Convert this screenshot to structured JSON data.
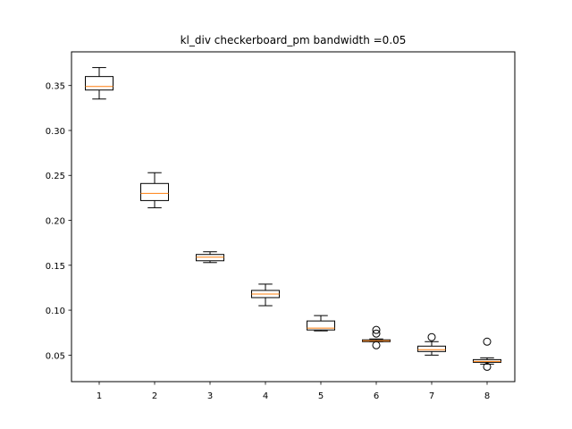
{
  "chart_data": {
    "type": "boxplot",
    "title": "kl_div checkerboard_pm bandwidth =0.05",
    "xlabel": "",
    "ylabel": "",
    "categories": [
      "1",
      "2",
      "3",
      "4",
      "5",
      "6",
      "7",
      "8"
    ],
    "boxes": [
      {
        "whislo": 0.335,
        "q1": 0.345,
        "med": 0.349,
        "q3": 0.36,
        "whishi": 0.37,
        "fliers": []
      },
      {
        "whislo": 0.214,
        "q1": 0.222,
        "med": 0.23,
        "q3": 0.241,
        "whishi": 0.253,
        "fliers": []
      },
      {
        "whislo": 0.153,
        "q1": 0.155,
        "med": 0.159,
        "q3": 0.162,
        "whishi": 0.165,
        "fliers": []
      },
      {
        "whislo": 0.105,
        "q1": 0.114,
        "med": 0.118,
        "q3": 0.122,
        "whishi": 0.129,
        "fliers": []
      },
      {
        "whislo": 0.077,
        "q1": 0.078,
        "med": 0.08,
        "q3": 0.088,
        "whishi": 0.094,
        "fliers": []
      },
      {
        "whislo": 0.065,
        "q1": 0.065,
        "med": 0.066,
        "q3": 0.067,
        "whishi": 0.068,
        "fliers": [
          0.078,
          0.074,
          0.061
        ]
      },
      {
        "whislo": 0.05,
        "q1": 0.054,
        "med": 0.056,
        "q3": 0.06,
        "whishi": 0.065,
        "fliers": [
          0.07
        ]
      },
      {
        "whislo": 0.04,
        "q1": 0.042,
        "med": 0.043,
        "q3": 0.045,
        "whishi": 0.047,
        "fliers": [
          0.065,
          0.037
        ]
      }
    ],
    "ylim": [
      0.0205,
      0.3875
    ],
    "yticks": [
      0.05,
      0.1,
      0.15,
      0.2,
      0.25,
      0.3,
      0.35
    ],
    "ytick_labels": [
      "0.05",
      "0.10",
      "0.15",
      "0.20",
      "0.25",
      "0.30",
      "0.35"
    ],
    "grid": false,
    "colors": {
      "box": "#000000",
      "median": "#ff7f0e",
      "flier": "#000000"
    }
  }
}
